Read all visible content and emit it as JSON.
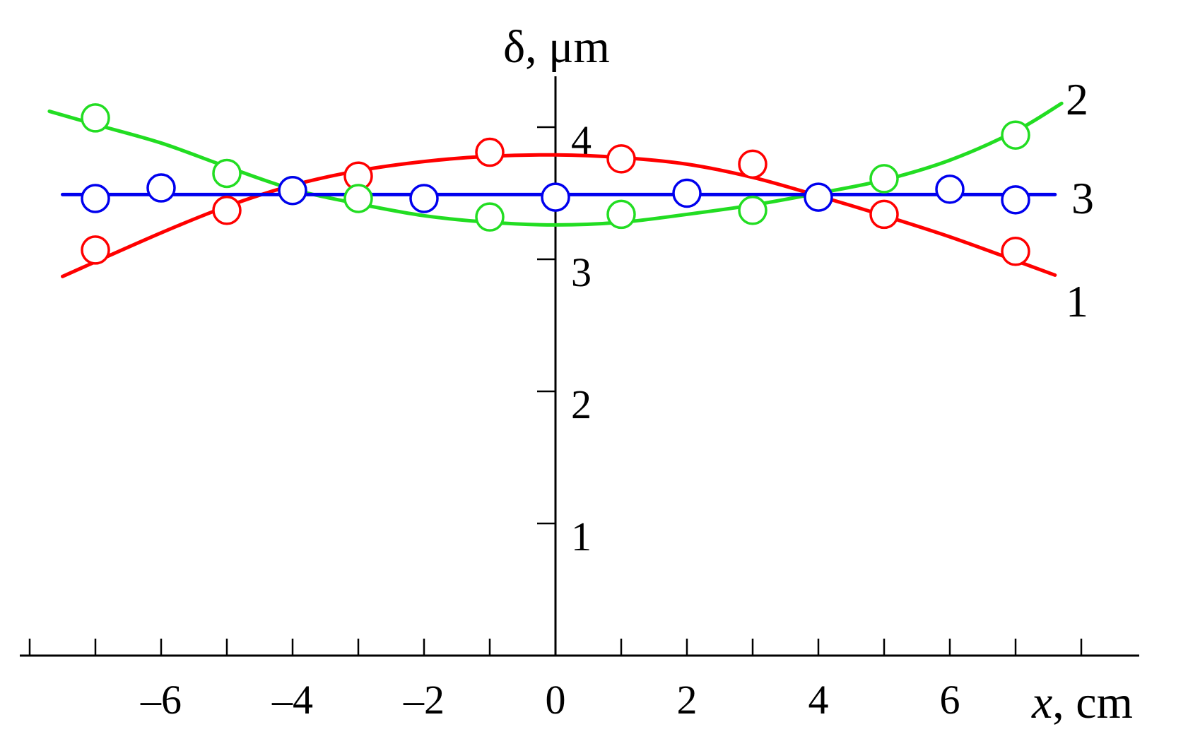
{
  "chart_data": {
    "type": "line",
    "xlabel": {
      "var": "x",
      "unit": ", cm"
    },
    "ylabel": "δ, μm",
    "xlim": [
      -8,
      9
    ],
    "ylim": [
      0,
      4.4
    ],
    "x_ticks": [
      -8,
      -7,
      -6,
      -5,
      -4,
      -3,
      -2,
      -1,
      0,
      1,
      2,
      3,
      4,
      5,
      6,
      7,
      8
    ],
    "x_tick_labels": [
      {
        "value": -6,
        "label": "–6"
      },
      {
        "value": -4,
        "label": "–4"
      },
      {
        "value": -2,
        "label": "–2"
      },
      {
        "value": 0,
        "label": "0"
      },
      {
        "value": 2,
        "label": "2"
      },
      {
        "value": 4,
        "label": "4"
      },
      {
        "value": 6,
        "label": "6"
      }
    ],
    "y_ticks": [
      {
        "value": 1,
        "label": "1"
      },
      {
        "value": 2,
        "label": "2"
      },
      {
        "value": 3,
        "label": "3"
      },
      {
        "value": 4,
        "label": "4"
      }
    ],
    "series": [
      {
        "label": "1",
        "color": "#ff0000",
        "curve_x": [
          -7.5,
          -6,
          -5,
          -4,
          -3,
          -2,
          -1,
          0,
          1,
          2,
          3,
          4,
          5,
          6,
          7,
          7.6
        ],
        "curve_y": [
          2.87,
          3.2,
          3.4,
          3.56,
          3.67,
          3.74,
          3.78,
          3.79,
          3.77,
          3.72,
          3.62,
          3.48,
          3.33,
          3.17,
          2.99,
          2.88
        ],
        "points_x": [
          -7,
          -5,
          -3,
          -1,
          1,
          3,
          5,
          7
        ],
        "points_y": [
          3.07,
          3.37,
          3.63,
          3.81,
          3.76,
          3.72,
          3.34,
          3.06
        ]
      },
      {
        "label": "2",
        "color": "#22dd22",
        "curve_x": [
          -7.7,
          -7,
          -6,
          -5,
          -4,
          -3,
          -2,
          -1,
          0,
          1,
          2,
          3,
          4,
          5,
          6,
          7,
          7.7
        ],
        "curve_y": [
          4.12,
          4.02,
          3.88,
          3.7,
          3.53,
          3.42,
          3.33,
          3.28,
          3.26,
          3.28,
          3.34,
          3.41,
          3.5,
          3.6,
          3.75,
          3.97,
          4.18
        ],
        "points_x": [
          -7,
          -5,
          -4,
          -3,
          -1,
          1,
          3,
          5,
          7
        ],
        "points_y": [
          4.07,
          3.65,
          3.52,
          3.46,
          3.32,
          3.34,
          3.37,
          3.61,
          3.94
        ]
      },
      {
        "label": "3",
        "color": "#0000ee",
        "curve_x": [
          -7.5,
          7.6
        ],
        "curve_y": [
          3.49,
          3.49
        ],
        "points_x": [
          -7,
          -6,
          -4,
          -2,
          0,
          2,
          4,
          6,
          7
        ],
        "points_y": [
          3.46,
          3.54,
          3.52,
          3.46,
          3.47,
          3.5,
          3.47,
          3.53,
          3.45
        ]
      }
    ]
  }
}
